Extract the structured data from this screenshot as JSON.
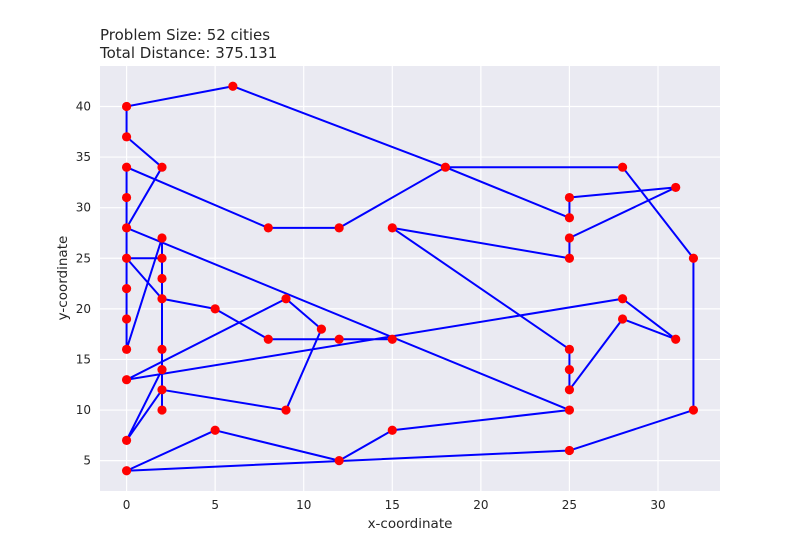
{
  "chart_data": {
    "type": "line",
    "title_lines": [
      "Problem Size: 52 cities",
      "Total Distance: 375.131"
    ],
    "xlabel": "x-coordinate",
    "ylabel": "y-coordinate",
    "xlim": [
      -1.5,
      33.5
    ],
    "ylim": [
      2,
      44
    ],
    "xticks": [
      0,
      5,
      10,
      15,
      20,
      25,
      30
    ],
    "yticks": [
      5,
      10,
      15,
      20,
      25,
      30,
      35,
      40
    ],
    "grid": true,
    "background": "#eaeaf2",
    "grid_color": "#ffffff",
    "line_color": "#0000ff",
    "marker_color": "#ff0000",
    "route": [
      [
        0,
        40
      ],
      [
        6,
        42
      ],
      [
        18,
        34
      ],
      [
        28,
        34
      ],
      [
        32,
        25
      ],
      [
        32,
        10
      ],
      [
        25,
        6
      ],
      [
        0,
        4
      ],
      [
        5,
        8
      ],
      [
        12,
        5
      ],
      [
        15,
        8
      ],
      [
        25,
        10
      ],
      [
        0,
        28
      ],
      [
        0,
        31
      ],
      [
        0,
        34
      ],
      [
        8,
        28
      ],
      [
        12,
        28
      ],
      [
        18,
        34
      ],
      [
        25,
        29
      ],
      [
        25,
        31
      ],
      [
        31,
        32
      ],
      [
        25,
        27
      ],
      [
        25,
        25
      ],
      [
        15,
        28
      ],
      [
        25,
        16
      ],
      [
        25,
        14
      ],
      [
        25,
        12
      ],
      [
        28,
        19
      ],
      [
        31,
        17
      ],
      [
        28,
        21
      ],
      [
        0,
        13
      ],
      [
        9,
        21
      ],
      [
        11,
        18
      ],
      [
        9,
        10
      ],
      [
        2,
        12
      ],
      [
        0,
        7
      ],
      [
        2,
        14
      ],
      [
        2,
        16
      ],
      [
        2,
        10
      ],
      [
        2,
        23
      ],
      [
        2,
        25
      ],
      [
        0,
        25
      ],
      [
        2,
        21
      ],
      [
        5,
        20
      ],
      [
        8,
        17
      ],
      [
        12,
        17
      ],
      [
        15,
        17
      ],
      [
        12,
        17
      ],
      [
        8,
        17
      ],
      [
        5,
        20
      ],
      [
        2,
        21
      ],
      [
        2,
        27
      ],
      [
        0,
        16
      ],
      [
        0,
        19
      ],
      [
        0,
        22
      ],
      [
        0,
        25
      ],
      [
        0,
        28
      ],
      [
        2,
        34
      ],
      [
        0,
        37
      ],
      [
        0,
        40
      ]
    ],
    "cities": [
      [
        0,
        40
      ],
      [
        6,
        42
      ],
      [
        0,
        37
      ],
      [
        2,
        34
      ],
      [
        0,
        34
      ],
      [
        0,
        31
      ],
      [
        0,
        28
      ],
      [
        2,
        27
      ],
      [
        0,
        25
      ],
      [
        2,
        25
      ],
      [
        2,
        23
      ],
      [
        0,
        22
      ],
      [
        2,
        21
      ],
      [
        5,
        20
      ],
      [
        0,
        19
      ],
      [
        8,
        17
      ],
      [
        12,
        17
      ],
      [
        15,
        17
      ],
      [
        11,
        18
      ],
      [
        9,
        21
      ],
      [
        0,
        16
      ],
      [
        2,
        16
      ],
      [
        2,
        14
      ],
      [
        0,
        13
      ],
      [
        2,
        12
      ],
      [
        2,
        10
      ],
      [
        9,
        10
      ],
      [
        0,
        7
      ],
      [
        5,
        8
      ],
      [
        12,
        5
      ],
      [
        15,
        8
      ],
      [
        0,
        4
      ],
      [
        25,
        6
      ],
      [
        25,
        10
      ],
      [
        25,
        12
      ],
      [
        25,
        14
      ],
      [
        25,
        16
      ],
      [
        28,
        19
      ],
      [
        28,
        21
      ],
      [
        31,
        17
      ],
      [
        32,
        10
      ],
      [
        32,
        25
      ],
      [
        31,
        32
      ],
      [
        28,
        34
      ],
      [
        25,
        31
      ],
      [
        25,
        29
      ],
      [
        25,
        27
      ],
      [
        25,
        25
      ],
      [
        15,
        28
      ],
      [
        18,
        34
      ],
      [
        12,
        28
      ],
      [
        8,
        28
      ]
    ]
  }
}
